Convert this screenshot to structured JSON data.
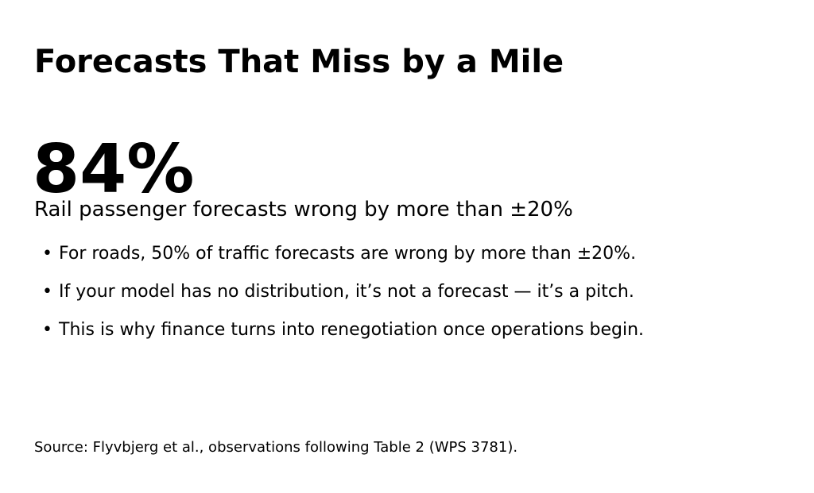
{
  "slide": {
    "title": "Forecasts That Miss by a Mile",
    "stat_value": "84%",
    "stat_label": "Rail passenger forecasts wrong by more than ±20%",
    "bullets": [
      "For roads, 50% of traffic forecasts are wrong by more than ±20%.",
      "If your model has no distribution, it’s not a forecast — it’s a pitch.",
      "This is why finance turns into renegotiation once operations begin."
    ],
    "bullet_glyph": "•",
    "source": "Source: Flyvbjerg et al., observations following Table 2 (WPS 3781)."
  }
}
